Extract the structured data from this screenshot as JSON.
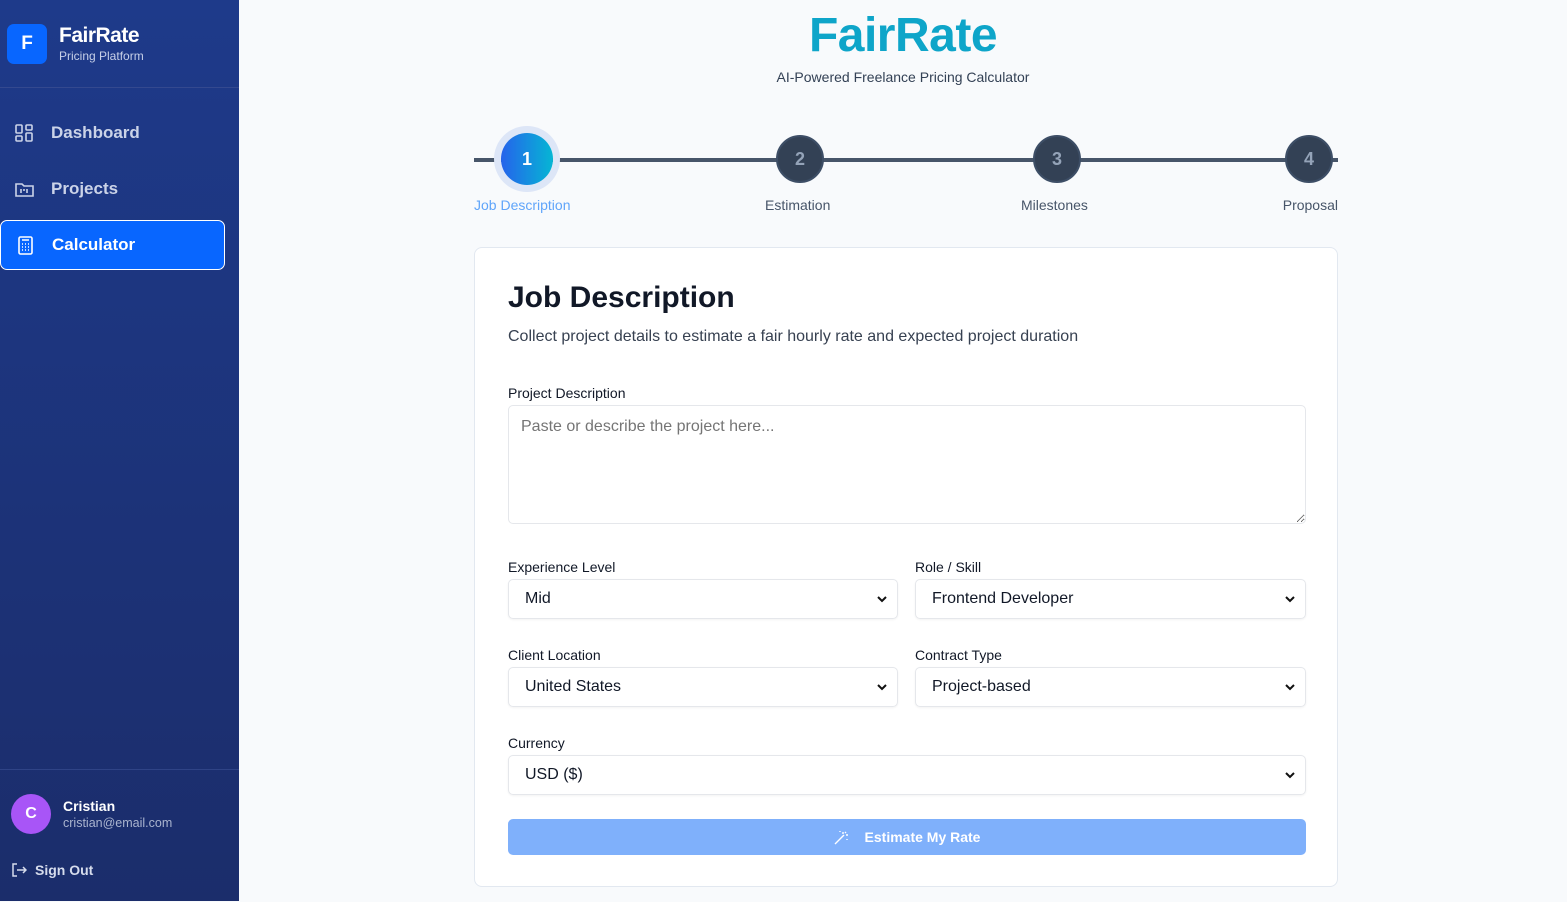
{
  "sidebar": {
    "logo_letter": "F",
    "brand": "FairRate",
    "brand_sub": "Pricing Platform",
    "items": [
      {
        "label": "Dashboard",
        "icon": "dashboard-grid-icon"
      },
      {
        "label": "Projects",
        "icon": "folder-icon"
      },
      {
        "label": "Calculator",
        "icon": "calculator-icon",
        "active": true
      }
    ],
    "user": {
      "initial": "C",
      "name": "Cristian",
      "email": "cristian@email.com"
    },
    "signout": "Sign Out"
  },
  "header": {
    "title": "FairRate",
    "subtitle": "AI-Powered Freelance Pricing Calculator"
  },
  "steps": [
    {
      "num": "1",
      "label": "Job Description",
      "active": true
    },
    {
      "num": "2",
      "label": "Estimation"
    },
    {
      "num": "3",
      "label": "Milestones"
    },
    {
      "num": "4",
      "label": "Proposal"
    }
  ],
  "form": {
    "title": "Job Description",
    "description": "Collect project details to estimate a fair hourly rate and expected project duration",
    "project_label": "Project Description",
    "project_placeholder": "Paste or describe the project here...",
    "experience_label": "Experience Level",
    "experience_value": "Mid",
    "role_label": "Role / Skill",
    "role_value": "Frontend Developer",
    "location_label": "Client Location",
    "location_value": "United States",
    "contract_label": "Contract Type",
    "contract_value": "Project-based",
    "currency_label": "Currency",
    "currency_value": "USD ($)",
    "submit": "Estimate My Rate"
  },
  "colors": {
    "accent": "#0866ff",
    "title": "#0ea5c9",
    "button": "#7fb0fb",
    "avatar": "#a855f7"
  }
}
